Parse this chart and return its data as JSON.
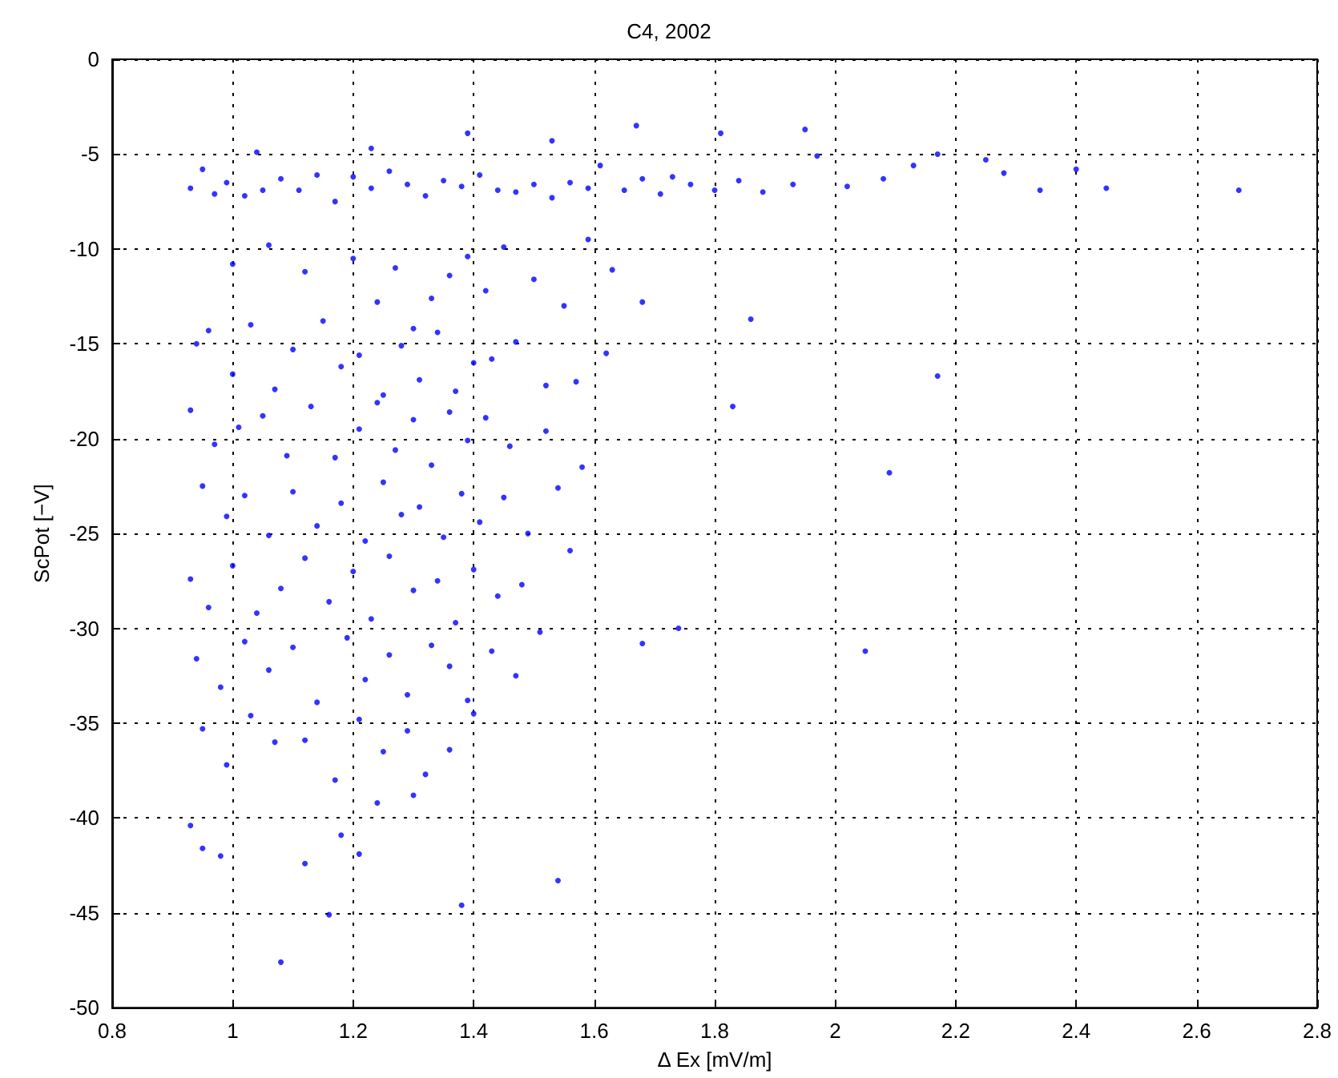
{
  "chart_data": {
    "type": "scatter",
    "title": "C4, 2002",
    "xlabel": "Δ Ex [mV/m]",
    "ylabel": "ScPot [−V]",
    "xlim": [
      0.8,
      2.8
    ],
    "xticks": [
      0.8,
      1,
      1.2,
      1.4,
      1.6,
      1.8,
      2,
      2.2,
      2.4,
      2.6,
      2.8
    ],
    "ylim": [
      -50,
      0
    ],
    "yticks": [
      -50,
      -45,
      -40,
      -35,
      -30,
      -25,
      -20,
      -15,
      -10,
      -5,
      0
    ],
    "grid": true,
    "marker": "circle",
    "series": [
      {
        "color": "#0000ff",
        "x": [
          0.93,
          0.95,
          0.97,
          0.99,
          1.02,
          1.05,
          1.08,
          1.11,
          1.14,
          1.17,
          1.2,
          1.23,
          1.26,
          1.29,
          1.32,
          1.35,
          1.38,
          1.41,
          1.44,
          1.47,
          1.5,
          1.53,
          1.56,
          1.59,
          1.61,
          1.65,
          1.68,
          1.71,
          1.73,
          1.76,
          1.8,
          1.84,
          1.88,
          1.93,
          1.97,
          2.02,
          2.08,
          2.13,
          2.17,
          2.25,
          2.28,
          2.34,
          2.4,
          2.45,
          2.67,
          1.39,
          1.53,
          1.67,
          1.81,
          1.95,
          1.23,
          1.04,
          1.0,
          1.06,
          1.12,
          1.2,
          1.24,
          1.27,
          1.3,
          1.33,
          1.36,
          1.39,
          1.42,
          1.45,
          1.5,
          1.55,
          1.59,
          1.63,
          1.68,
          1.86,
          1.83,
          2.17,
          2.09,
          2.05,
          1.68,
          1.74,
          0.94,
          0.96,
          1.0,
          1.03,
          1.07,
          1.1,
          1.15,
          1.18,
          1.21,
          1.25,
          1.28,
          1.31,
          1.34,
          1.37,
          1.4,
          1.43,
          1.47,
          1.52,
          1.57,
          1.62,
          0.93,
          0.97,
          1.01,
          1.05,
          1.09,
          1.13,
          1.17,
          1.21,
          1.24,
          1.27,
          1.3,
          1.33,
          1.36,
          1.39,
          1.42,
          1.46,
          1.52,
          1.58,
          0.95,
          0.99,
          1.02,
          1.06,
          1.1,
          1.14,
          1.18,
          1.22,
          1.25,
          1.28,
          1.31,
          1.35,
          1.38,
          1.41,
          1.45,
          1.49,
          1.54,
          0.93,
          0.96,
          1.0,
          1.04,
          1.08,
          1.12,
          1.16,
          1.2,
          1.23,
          1.26,
          1.3,
          1.34,
          1.37,
          1.4,
          1.44,
          1.48,
          1.56,
          0.94,
          0.98,
          1.02,
          1.06,
          1.1,
          1.14,
          1.19,
          1.22,
          1.26,
          1.29,
          1.33,
          1.36,
          1.39,
          1.43,
          1.47,
          1.51,
          0.95,
          0.99,
          1.03,
          1.07,
          1.12,
          1.17,
          1.21,
          1.25,
          1.29,
          1.32,
          1.36,
          1.4,
          0.93,
          0.95,
          0.98,
          1.08,
          1.12,
          1.18,
          1.21,
          1.38,
          1.54,
          1.3,
          1.24,
          1.16
        ],
        "values": [
          -6.8,
          -5.8,
          -7.1,
          -6.5,
          -7.2,
          -6.9,
          -6.3,
          -6.9,
          -6.1,
          -7.5,
          -6.2,
          -6.8,
          -5.9,
          -6.6,
          -7.2,
          -6.4,
          -6.7,
          -6.1,
          -6.9,
          -7.0,
          -6.6,
          -7.3,
          -6.5,
          -6.8,
          -5.6,
          -6.9,
          -6.3,
          -7.1,
          -6.2,
          -6.6,
          -6.9,
          -6.4,
          -7.0,
          -6.6,
          -5.1,
          -6.7,
          -6.3,
          -5.6,
          -5.0,
          -5.3,
          -6.0,
          -6.9,
          -5.8,
          -6.8,
          -6.9,
          -3.9,
          -4.3,
          -3.5,
          -3.9,
          -3.7,
          -4.7,
          -4.9,
          -10.8,
          -9.8,
          -11.2,
          -10.5,
          -12.8,
          -11.0,
          -14.2,
          -12.6,
          -11.4,
          -10.4,
          -12.2,
          -9.9,
          -11.6,
          -13.0,
          -9.5,
          -11.1,
          -12.8,
          -13.7,
          -18.3,
          -16.7,
          -21.8,
          -31.2,
          -30.8,
          -30.0,
          -15.0,
          -14.3,
          -16.6,
          -14.0,
          -17.4,
          -15.3,
          -13.8,
          -16.2,
          -15.6,
          -17.7,
          -15.1,
          -16.9,
          -14.4,
          -17.5,
          -16.0,
          -15.8,
          -14.9,
          -17.2,
          -17.0,
          -15.5,
          -18.5,
          -20.3,
          -19.4,
          -18.8,
          -20.9,
          -18.3,
          -21.0,
          -19.5,
          -18.1,
          -20.6,
          -19.0,
          -21.4,
          -18.6,
          -20.1,
          -18.9,
          -20.4,
          -19.6,
          -21.5,
          -22.5,
          -24.1,
          -23.0,
          -25.1,
          -22.8,
          -24.6,
          -23.4,
          -25.4,
          -22.3,
          -24.0,
          -23.6,
          -25.2,
          -22.9,
          -24.4,
          -23.1,
          -25.0,
          -22.6,
          -27.4,
          -28.9,
          -26.7,
          -29.2,
          -27.9,
          -26.3,
          -28.6,
          -27.0,
          -29.5,
          -26.2,
          -28.0,
          -27.5,
          -29.7,
          -26.9,
          -28.3,
          -27.7,
          -25.9,
          -31.6,
          -33.1,
          -30.7,
          -32.2,
          -31.0,
          -33.9,
          -30.5,
          -32.7,
          -31.4,
          -33.5,
          -30.9,
          -32.0,
          -33.8,
          -31.2,
          -32.5,
          -30.2,
          -35.3,
          -37.2,
          -34.6,
          -36.0,
          -35.9,
          -38.0,
          -34.8,
          -36.5,
          -35.4,
          -37.7,
          -36.4,
          -34.5,
          -40.4,
          -41.6,
          -42.0,
          -47.6,
          -42.4,
          -40.9,
          -41.9,
          -44.6,
          -43.3,
          -38.8,
          -39.2,
          -45.1
        ]
      }
    ]
  }
}
